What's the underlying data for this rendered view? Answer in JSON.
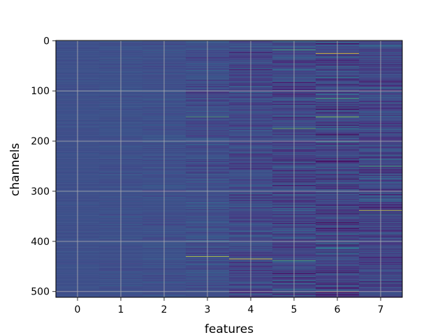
{
  "chart_data": {
    "type": "heatmap",
    "title": "",
    "xlabel": "features",
    "ylabel": "channels",
    "x_ticks": [
      "0",
      "1",
      "2",
      "3",
      "4",
      "5",
      "6",
      "7"
    ],
    "y_ticks": [
      "0",
      "100",
      "200",
      "300",
      "400",
      "500"
    ],
    "n_columns": 8,
    "n_rows": 512,
    "xlim": [
      -0.5,
      7.5
    ],
    "ylim": [
      511.5,
      -0.5
    ],
    "y_inverted": true,
    "grid": true,
    "colormap": "viridis",
    "column_spread": [
      0.03,
      0.05,
      0.07,
      0.12,
      0.16,
      0.2,
      0.22,
      0.2
    ],
    "column_base": [
      0.3,
      0.3,
      0.3,
      0.29,
      0.27,
      0.26,
      0.25,
      0.26
    ],
    "highlights": [
      {
        "column": 3,
        "row": 152,
        "value": 0.8
      },
      {
        "column": 3,
        "row": 430,
        "value": 0.95
      },
      {
        "column": 4,
        "row": 435,
        "value": 1.0
      },
      {
        "column": 5,
        "row": 18,
        "value": 0.8
      },
      {
        "column": 5,
        "row": 175,
        "value": 0.85
      },
      {
        "column": 5,
        "row": 438,
        "value": 0.8
      },
      {
        "column": 6,
        "row": 25,
        "value": 1.0
      },
      {
        "column": 6,
        "row": 115,
        "value": 0.8
      },
      {
        "column": 6,
        "row": 152,
        "value": 0.9
      },
      {
        "column": 6,
        "row": 500,
        "value": 1.0
      },
      {
        "column": 7,
        "row": 338,
        "value": 0.95
      },
      {
        "column": 7,
        "row": 250,
        "value": 0.8
      }
    ]
  }
}
